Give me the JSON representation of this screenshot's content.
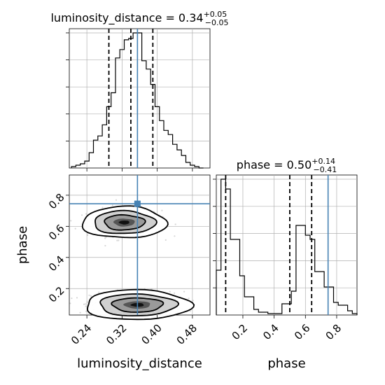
{
  "chart_data": {
    "type": "corner",
    "parameters": [
      "luminosity_distance",
      "phase"
    ],
    "truths": {
      "luminosity_distance": 0.355,
      "phase": 0.745
    },
    "grid": true,
    "panels": [
      {
        "id": "hist_luminosity_distance",
        "kind": "histogram",
        "parameter": "luminosity_distance",
        "title": {
          "prefix": "luminosity_distance = ",
          "value": "0.34",
          "plus": "+0.05",
          "minus": "−0.05"
        },
        "xlim": [
          0.2,
          0.52
        ],
        "ylim": [
          0,
          1
        ],
        "bin_edges": [
          0.205,
          0.215,
          0.225,
          0.235,
          0.245,
          0.255,
          0.265,
          0.275,
          0.285,
          0.295,
          0.305,
          0.315,
          0.325,
          0.335,
          0.345,
          0.355,
          0.365,
          0.375,
          0.385,
          0.395,
          0.405,
          0.415,
          0.425,
          0.435,
          0.445,
          0.455,
          0.465,
          0.475,
          0.485,
          0.495,
          0.505
        ],
        "counts": [
          0.01,
          0.02,
          0.03,
          0.05,
          0.11,
          0.2,
          0.23,
          0.31,
          0.44,
          0.54,
          0.79,
          0.85,
          0.92,
          0.93,
          0.97,
          0.97,
          0.77,
          0.71,
          0.6,
          0.44,
          0.34,
          0.27,
          0.24,
          0.17,
          0.13,
          0.09,
          0.04,
          0.02,
          0.01,
          0.0
        ],
        "quantiles": [
          0.29,
          0.34,
          0.39
        ]
      },
      {
        "id": "hist_phase",
        "kind": "histogram",
        "parameter": "phase",
        "title": {
          "prefix": "phase = ",
          "value": "0.50",
          "plus": "+0.14",
          "minus": "−0.41"
        },
        "xlim": [
          0.03,
          0.93
        ],
        "ylim": [
          0,
          1
        ],
        "bin_edges": [
          0.03,
          0.06,
          0.09,
          0.12,
          0.15,
          0.18,
          0.21,
          0.24,
          0.27,
          0.3,
          0.33,
          0.36,
          0.39,
          0.42,
          0.45,
          0.48,
          0.51,
          0.54,
          0.57,
          0.6,
          0.63,
          0.66,
          0.69,
          0.72,
          0.75,
          0.78,
          0.81,
          0.84,
          0.87,
          0.9,
          0.93
        ],
        "counts": [
          0.32,
          0.97,
          0.9,
          0.54,
          0.54,
          0.28,
          0.13,
          0.13,
          0.04,
          0.02,
          0.02,
          0.01,
          0.01,
          0.01,
          0.08,
          0.08,
          0.17,
          0.64,
          0.64,
          0.57,
          0.54,
          0.31,
          0.31,
          0.2,
          0.2,
          0.09,
          0.07,
          0.07,
          0.03,
          0.01
        ],
        "quantiles": [
          0.09,
          0.5,
          0.64
        ]
      },
      {
        "id": "joint_phase_vs_luminosity_distance",
        "kind": "contour",
        "x_parameter": "luminosity_distance",
        "y_parameter": "phase",
        "xlim": [
          0.2,
          0.52
        ],
        "ylim": [
          0.03,
          0.93
        ],
        "modes": [
          {
            "center": [
              0.325,
              0.625
            ],
            "sigma": [
              0.04,
              0.042
            ],
            "weight": 0.47
          },
          {
            "center": [
              0.355,
              0.095
            ],
            "sigma": [
              0.05,
              0.04
            ],
            "weight": 0.53
          }
        ],
        "xlabel": "luminosity_distance",
        "ylabel": "phase",
        "xticks": [
          0.24,
          0.32,
          0.4,
          0.48
        ],
        "xtick_labels": [
          "0.24",
          "0.32",
          "0.40",
          "0.48"
        ],
        "yticks": [
          0.2,
          0.4,
          0.6,
          0.8
        ],
        "ytick_labels": [
          "0.2",
          "0.4",
          "0.6",
          "0.8"
        ]
      },
      {
        "id": "phase_axis",
        "kind": "axis",
        "xlabel": "phase",
        "xticks": [
          0.2,
          0.4,
          0.6,
          0.8
        ],
        "xtick_labels": [
          "0.2",
          "0.4",
          "0.6",
          "0.8"
        ]
      }
    ],
    "colors": {
      "truth": "#4682b4",
      "hist": "#000000",
      "grid": "#b0b0b0",
      "scatter": "#8c8c8c"
    }
  }
}
